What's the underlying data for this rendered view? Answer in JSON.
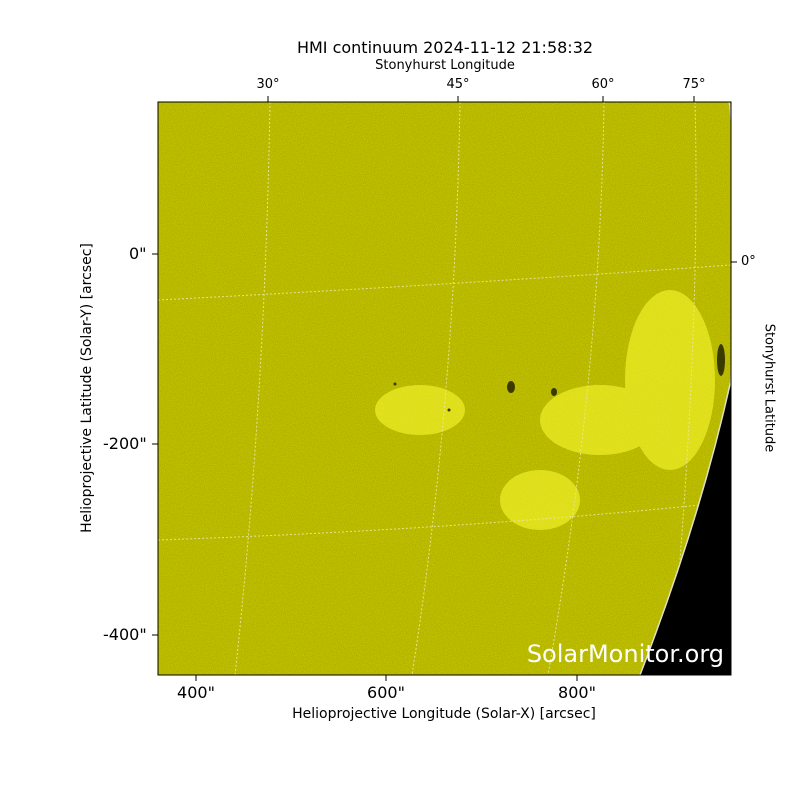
{
  "title": "HMI continuum 2024-11-12 21:58:32",
  "top_axis": {
    "label": "Stonyhurst Longitude",
    "ticks": [
      "30°",
      "45°",
      "60°",
      "75°"
    ]
  },
  "right_axis": {
    "label": "Stonyhurst Latitude",
    "ticks": [
      "0°"
    ]
  },
  "x_axis": {
    "label": "Helioprojective Longitude (Solar-X) [arcsec]",
    "ticks": [
      "400\"",
      "600\"",
      "800\""
    ]
  },
  "y_axis": {
    "label": "Helioprojective Latitude (Solar-Y) [arcsec]",
    "ticks": [
      "0\"",
      "-200\"",
      "-400\""
    ]
  },
  "watermark": "SolarMonitor.org",
  "colors": {
    "disk": "#cccc00",
    "space": "#000000",
    "grid": "#e8e8a0"
  }
}
